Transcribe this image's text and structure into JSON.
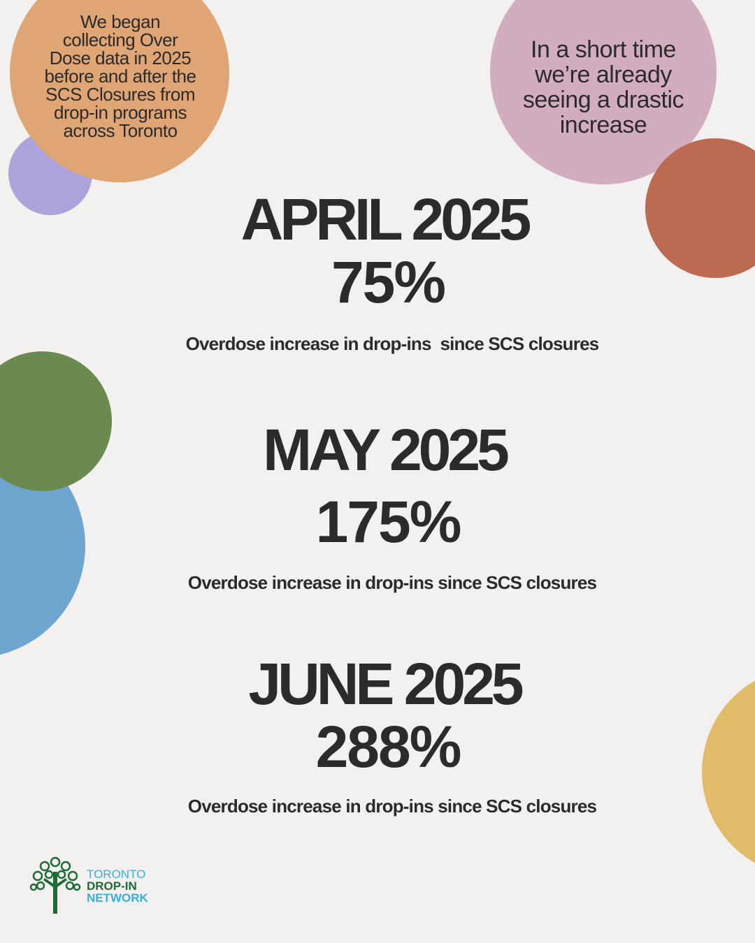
{
  "colors": {
    "background": "#f2f1ef",
    "orange": "#dfa574",
    "purple": "#aaa4da",
    "pink": "#d2adc0",
    "rust": "#bd6a52",
    "green": "#6a8a50",
    "blue": "#6fa6cf",
    "yellow": "#e2bb68",
    "logo_green": "#1d6b35",
    "logo_blue": "#3aaee0"
  },
  "bubbles": {
    "left": "We began collecting Over Dose data in 2025 before and after the SCS Closures from drop-in programs across Toronto",
    "right": "In a short time we’re already seeing a drastic increase"
  },
  "stats": [
    {
      "month": "APRIL 2025",
      "percent": "75%",
      "description": "Overdose increase in drop-ins  since SCS closures"
    },
    {
      "month": "MAY 2025",
      "percent": "175%",
      "description": "Overdose increase in drop-ins since SCS closures"
    },
    {
      "month": "JUNE 2025",
      "percent": "288%",
      "description": "Overdose increase in drop-ins since SCS closures"
    }
  ],
  "logo": {
    "line1": "TORONTO",
    "line2": "DROP-IN",
    "line3": "NETWORK",
    "icon": "tree-icon"
  }
}
